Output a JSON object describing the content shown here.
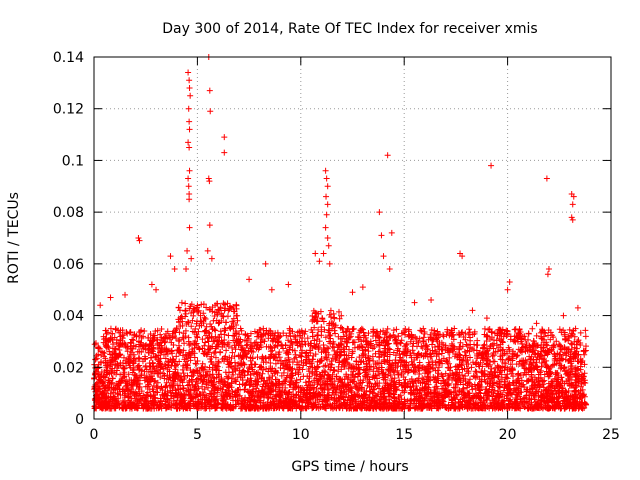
{
  "chart_data": {
    "type": "scatter",
    "title": "Day 300 of 2014, Rate Of TEC Index for receiver xmis",
    "xlabel": "GPS time / hours",
    "ylabel": "ROTI / TECUs",
    "xlim": [
      0,
      25
    ],
    "ylim": [
      0,
      0.14
    ],
    "x_ticks": [
      0,
      5,
      10,
      15,
      20,
      25
    ],
    "y_ticks": [
      0,
      0.02,
      0.04,
      0.06,
      0.08,
      0.1,
      0.12,
      0.14
    ],
    "x_tick_labels": [
      "0",
      "5",
      "10",
      "15",
      "20",
      "25"
    ],
    "y_tick_labels": [
      "0",
      "0.02",
      "0.04",
      "0.06",
      "0.08",
      "0.1",
      "0.12",
      "0.14"
    ],
    "grid": true,
    "marker": "+",
    "marker_color": "#ff0000",
    "dense_band": {
      "x_range": [
        0,
        23.8
      ],
      "y_floor": 0.004,
      "y_typical_max": 0.035,
      "note": "thousands of densely packed points"
    },
    "series": [
      {
        "name": "ROTI",
        "points": [
          [
            4.55,
            0.134
          ],
          [
            4.6,
            0.131
          ],
          [
            4.62,
            0.128
          ],
          [
            4.65,
            0.125
          ],
          [
            4.58,
            0.12
          ],
          [
            4.6,
            0.115
          ],
          [
            4.62,
            0.112
          ],
          [
            4.55,
            0.107
          ],
          [
            4.6,
            0.105
          ],
          [
            4.62,
            0.096
          ],
          [
            4.55,
            0.093
          ],
          [
            4.58,
            0.09
          ],
          [
            4.6,
            0.087
          ],
          [
            4.6,
            0.085
          ],
          [
            4.62,
            0.074
          ],
          [
            4.5,
            0.065
          ],
          [
            4.7,
            0.062
          ],
          [
            4.45,
            0.058
          ],
          [
            5.55,
            0.14
          ],
          [
            5.6,
            0.127
          ],
          [
            5.62,
            0.119
          ],
          [
            5.55,
            0.093
          ],
          [
            5.58,
            0.092
          ],
          [
            5.6,
            0.075
          ],
          [
            5.5,
            0.065
          ],
          [
            5.7,
            0.062
          ],
          [
            6.3,
            0.109
          ],
          [
            6.3,
            0.103
          ],
          [
            2.15,
            0.07
          ],
          [
            2.2,
            0.069
          ],
          [
            3.7,
            0.063
          ],
          [
            3.9,
            0.058
          ],
          [
            8.3,
            0.06
          ],
          [
            9.4,
            0.052
          ],
          [
            10.7,
            0.064
          ],
          [
            10.9,
            0.061
          ],
          [
            11.2,
            0.096
          ],
          [
            11.25,
            0.093
          ],
          [
            11.3,
            0.09
          ],
          [
            11.22,
            0.086
          ],
          [
            11.3,
            0.083
          ],
          [
            11.25,
            0.079
          ],
          [
            11.2,
            0.074
          ],
          [
            11.3,
            0.07
          ],
          [
            11.35,
            0.067
          ],
          [
            11.1,
            0.064
          ],
          [
            11.4,
            0.06
          ],
          [
            13.8,
            0.08
          ],
          [
            13.9,
            0.071
          ],
          [
            14.2,
            0.102
          ],
          [
            14.4,
            0.072
          ],
          [
            14.0,
            0.063
          ],
          [
            14.3,
            0.058
          ],
          [
            17.7,
            0.064
          ],
          [
            17.8,
            0.063
          ],
          [
            19.2,
            0.098
          ],
          [
            20.1,
            0.053
          ],
          [
            20.0,
            0.05
          ],
          [
            21.9,
            0.093
          ],
          [
            22.0,
            0.058
          ],
          [
            21.95,
            0.056
          ],
          [
            23.1,
            0.087
          ],
          [
            23.2,
            0.086
          ],
          [
            23.15,
            0.083
          ],
          [
            23.1,
            0.078
          ],
          [
            23.15,
            0.077
          ],
          [
            23.4,
            0.043
          ],
          [
            0.3,
            0.044
          ],
          [
            0.8,
            0.047
          ],
          [
            1.5,
            0.048
          ],
          [
            2.8,
            0.052
          ],
          [
            3.0,
            0.05
          ],
          [
            7.5,
            0.054
          ],
          [
            8.6,
            0.05
          ],
          [
            12.5,
            0.049
          ],
          [
            13.0,
            0.051
          ],
          [
            15.5,
            0.045
          ],
          [
            16.3,
            0.046
          ],
          [
            18.3,
            0.042
          ],
          [
            19.0,
            0.039
          ],
          [
            21.4,
            0.037
          ],
          [
            22.7,
            0.04
          ]
        ]
      }
    ]
  }
}
